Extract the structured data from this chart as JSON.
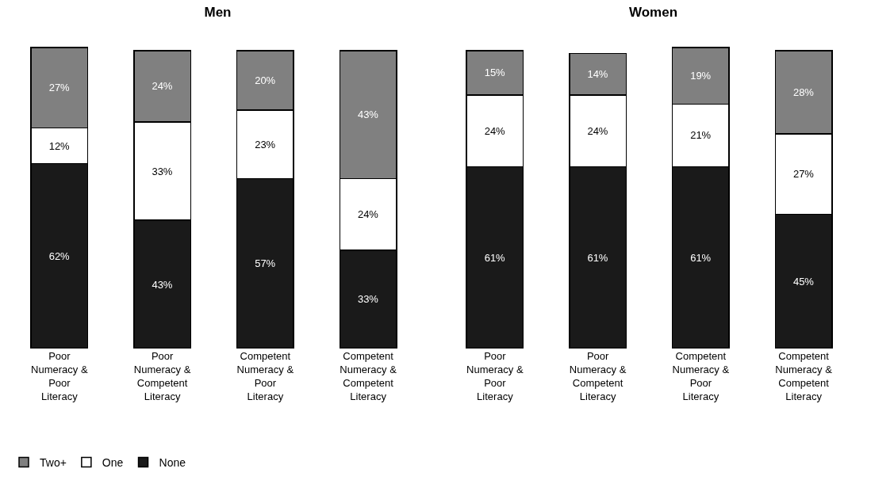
{
  "chart_data": [
    {
      "type": "bar",
      "title": "Men",
      "stacked": true,
      "legend": "bottom left",
      "categories": [
        "Poor Numeracy & Poor Literacy",
        "Poor Numeracy & Competent Literacy",
        "Competent Numeracy & Poor Literacy",
        "Competent Numeracy & Competent Literacy"
      ],
      "series": [
        {
          "name": "None",
          "color": "#1a1a1a",
          "values": [
            62,
            43,
            57,
            33
          ],
          "value_labels": [
            "62%",
            "43%",
            "57%",
            "33%"
          ]
        },
        {
          "name": "One",
          "color": "#ffffff",
          "values": [
            12,
            33,
            23,
            24
          ],
          "value_labels": [
            "12%",
            "33%",
            "23%",
            "24%"
          ]
        },
        {
          "name": "Two+",
          "color": "#808080",
          "values": [
            27,
            24,
            20,
            43
          ],
          "value_labels": [
            "27%",
            "24%",
            "20%",
            "43%"
          ]
        }
      ]
    },
    {
      "type": "bar",
      "title": "Women",
      "stacked": true,
      "categories": [
        "Poor Numeracy & Poor Literacy",
        "Poor Numeracy & Competent Literacy",
        "Competent Numeracy & Poor Literacy",
        "Competent Numeracy & Competent Literacy"
      ],
      "series": [
        {
          "color": "#1a1a1a",
          "values": [
            61,
            61,
            61,
            45
          ],
          "value_labels": [
            "61%",
            "61%",
            "61%",
            "45%"
          ]
        },
        {
          "color": "#ffffff",
          "values": [
            24,
            24,
            21,
            27
          ],
          "value_labels": [
            "24%",
            "24%",
            "21%",
            "27%"
          ]
        },
        {
          "color": "#808080",
          "values": [
            15,
            14,
            19,
            28
          ],
          "value_labels": [
            "15%",
            "14%",
            "19%",
            "28%"
          ]
        }
      ]
    }
  ]
}
